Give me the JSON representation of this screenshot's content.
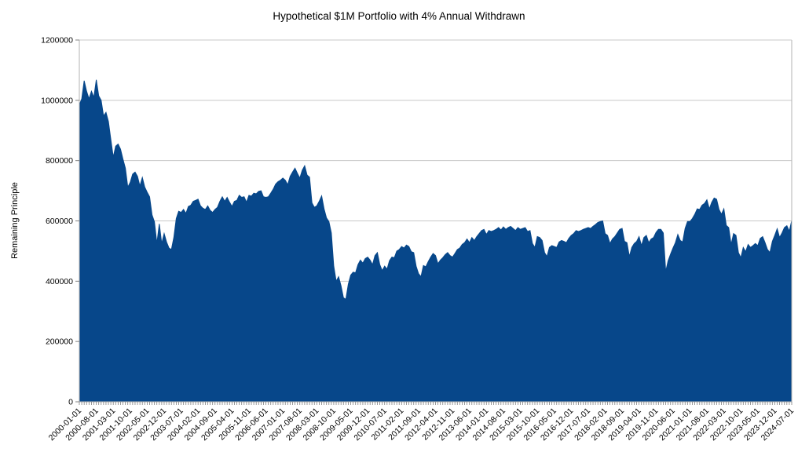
{
  "chart_data": {
    "type": "area",
    "title": "Hypothetical $1M Portfolio with 4% Annual Withdrawn",
    "xlabel": "",
    "ylabel": "Remaining Principle",
    "ylim": [
      0,
      1200000
    ],
    "yticks": [
      0,
      200000,
      400000,
      600000,
      800000,
      1000000,
      1200000
    ],
    "grid": true,
    "legend": "none",
    "area_color": "#07478a",
    "gridline_color": "#c8c8c8",
    "axis_color": "#b3b3b3",
    "text_color": "#000000",
    "background": "#ffffff",
    "x_label_every": 7,
    "x_tick_labels": [
      "2000-01-01",
      "2000-08-01",
      "2001-03-01",
      "2001-10-01",
      "2002-05-01",
      "2002-12-01",
      "2003-07-01",
      "2004-02-01",
      "2004-09-01",
      "2005-04-01",
      "2005-11-01",
      "2006-06-01",
      "2007-01-01",
      "2007-08-01",
      "2008-03-01",
      "2008-10-01",
      "2009-05-01",
      "2009-12-01",
      "2010-07-01",
      "2011-02-01",
      "2011-09-01",
      "2012-04-01",
      "2012-11-01",
      "2013-06-01",
      "2014-01-01",
      "2014-08-01",
      "2015-03-01",
      "2015-10-01",
      "2016-05-01",
      "2016-12-01",
      "2017-07-01",
      "2018-02-01",
      "2018-09-01",
      "2019-04-01",
      "2019-11-01",
      "2020-06-01",
      "2021-01-01",
      "2021-08-01",
      "2022-03-01",
      "2022-10-01",
      "2023-05-01",
      "2023-12-01",
      "2024-07-01"
    ],
    "series": [
      {
        "name": "Remaining Principle",
        "start": "2000-01",
        "frequency": "monthly",
        "values": [
          985000,
          1005000,
          1065000,
          1030000,
          1005000,
          1030000,
          1010000,
          1068000,
          1015000,
          1000000,
          948000,
          960000,
          930000,
          870000,
          812000,
          848000,
          855000,
          838000,
          805000,
          775000,
          712000,
          728000,
          755000,
          762000,
          748000,
          716000,
          744000,
          712000,
          695000,
          680000,
          620000,
          597000,
          525000,
          590000,
          525000,
          558000,
          530000,
          510000,
          505000,
          545000,
          608000,
          632000,
          628000,
          638000,
          625000,
          648000,
          652000,
          665000,
          668000,
          672000,
          650000,
          642000,
          638000,
          650000,
          635000,
          628000,
          638000,
          645000,
          665000,
          680000,
          665000,
          678000,
          662000,
          648000,
          665000,
          668000,
          685000,
          678000,
          680000,
          662000,
          685000,
          682000,
          692000,
          690000,
          698000,
          700000,
          680000,
          678000,
          680000,
          692000,
          705000,
          722000,
          730000,
          735000,
          742000,
          735000,
          720000,
          748000,
          762000,
          775000,
          758000,
          742000,
          768000,
          783000,
          752000,
          745000,
          660000,
          645000,
          650000,
          665000,
          683000,
          640000,
          610000,
          598000,
          560000,
          450000,
          400000,
          415000,
          385000,
          345000,
          340000,
          390000,
          420000,
          430000,
          428000,
          455000,
          470000,
          460000,
          475000,
          480000,
          470000,
          455000,
          485000,
          495000,
          455000,
          435000,
          450000,
          440000,
          468000,
          480000,
          478000,
          500000,
          505000,
          515000,
          510000,
          520000,
          515000,
          498000,
          495000,
          450000,
          425000,
          415000,
          452000,
          448000,
          465000,
          480000,
          492000,
          485000,
          458000,
          470000,
          478000,
          488000,
          495000,
          485000,
          480000,
          492000,
          505000,
          510000,
          522000,
          528000,
          540000,
          528000,
          545000,
          535000,
          548000,
          558000,
          568000,
          572000,
          555000,
          568000,
          565000,
          568000,
          572000,
          578000,
          570000,
          580000,
          572000,
          578000,
          582000,
          575000,
          568000,
          578000,
          572000,
          575000,
          578000,
          565000,
          568000,
          525000,
          512000,
          548000,
          545000,
          535000,
          495000,
          482000,
          512000,
          518000,
          515000,
          512000,
          530000,
          535000,
          532000,
          528000,
          542000,
          552000,
          558000,
          568000,
          565000,
          568000,
          572000,
          575000,
          578000,
          575000,
          582000,
          588000,
          595000,
          598000,
          600000,
          558000,
          552000,
          525000,
          540000,
          548000,
          560000,
          572000,
          575000,
          532000,
          528000,
          482000,
          512000,
          525000,
          532000,
          548000,
          518000,
          545000,
          552000,
          528000,
          540000,
          545000,
          562000,
          572000,
          572000,
          560000,
          432000,
          468000,
          490000,
          510000,
          528000,
          555000,
          535000,
          530000,
          575000,
          598000,
          598000,
          608000,
          622000,
          640000,
          638000,
          652000,
          658000,
          670000,
          640000,
          662000,
          676000,
          672000,
          638000,
          622000,
          640000,
          585000,
          578000,
          522000,
          558000,
          552000,
          495000,
          478000,
          512000,
          498000,
          522000,
          512000,
          518000,
          525000,
          518000,
          542000,
          548000,
          528000,
          505000,
          495000,
          532000,
          552000,
          574000,
          545000,
          560000,
          578000,
          584000,
          566000,
          601000
        ]
      }
    ]
  }
}
